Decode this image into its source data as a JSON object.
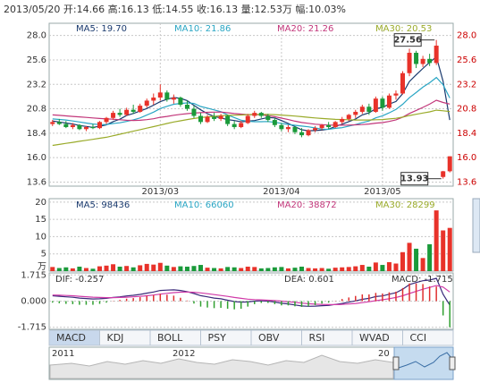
{
  "header": "2013/05/20 开:14.66 高:16.13 低:14.55 收:16.13 量:12.53万 幅:10.03%",
  "chart_data": [
    {
      "type": "candlestick",
      "categories": [
        null,
        null,
        null,
        null,
        null,
        null,
        null,
        null,
        null,
        null,
        null,
        null,
        null,
        null,
        null,
        null,
        "2013/03",
        null,
        null,
        null,
        null,
        null,
        null,
        null,
        null,
        null,
        null,
        null,
        null,
        null,
        null,
        null,
        null,
        null,
        "2013/04",
        null,
        null,
        null,
        null,
        null,
        null,
        null,
        null,
        null,
        null,
        null,
        null,
        null,
        null,
        "2013/05",
        null,
        null,
        null,
        null,
        null,
        null,
        null,
        null,
        null,
        null
      ],
      "open": [
        19.3,
        19.5,
        19.3,
        19.0,
        19.2,
        18.8,
        19.0,
        18.9,
        19.5,
        19.9,
        20.4,
        20.2,
        20.7,
        20.5,
        21.1,
        21.6,
        21.9,
        22.4,
        21.7,
        21.9,
        21.2,
        20.8,
        20.1,
        19.5,
        20.0,
        19.8,
        20.1,
        19.3,
        19.0,
        19.4,
        20.1,
        20.4,
        20.1,
        19.7,
        19.2,
        18.8,
        19.0,
        18.5,
        18.2,
        18.7,
        18.9,
        19.2,
        19.0,
        19.5,
        19.8,
        20.2,
        20.5,
        21.0,
        20.5,
        21.8,
        20.9,
        22.1,
        22.3,
        24.3,
        26.3,
        25.2,
        25.7,
        25.3,
        14.1,
        14.66
      ],
      "high": [
        19.7,
        19.8,
        19.6,
        19.4,
        19.3,
        19.1,
        19.3,
        19.6,
        20.0,
        20.6,
        20.8,
        20.9,
        21.2,
        21.3,
        21.8,
        22.3,
        23.2,
        22.6,
        22.2,
        22.0,
        21.6,
        21.1,
        20.4,
        20.2,
        20.4,
        20.3,
        20.2,
        19.6,
        19.6,
        20.3,
        20.6,
        20.5,
        20.3,
        19.9,
        19.4,
        19.2,
        19.1,
        18.9,
        18.8,
        19.1,
        19.3,
        19.5,
        19.6,
        20.0,
        20.3,
        20.7,
        21.2,
        21.3,
        22.0,
        22.0,
        22.3,
        22.6,
        24.5,
        26.7,
        26.5,
        26.0,
        26.2,
        27.56,
        14.7,
        16.13
      ],
      "low": [
        19.1,
        19.2,
        18.9,
        18.8,
        18.7,
        18.6,
        18.8,
        18.8,
        19.3,
        19.7,
        20.0,
        20.1,
        20.3,
        20.4,
        20.9,
        21.2,
        21.6,
        21.5,
        21.3,
        21.0,
        20.6,
        19.9,
        19.3,
        19.4,
        19.6,
        19.6,
        19.1,
        18.8,
        18.9,
        19.3,
        19.9,
        19.9,
        19.5,
        19.0,
        18.6,
        18.5,
        18.3,
        18.0,
        18.1,
        18.5,
        18.7,
        18.8,
        18.9,
        19.3,
        19.6,
        19.9,
        20.3,
        20.2,
        20.4,
        20.6,
        20.8,
        21.7,
        22.2,
        24.0,
        24.8,
        24.9,
        25.0,
        25.1,
        13.93,
        14.55
      ],
      "close": [
        19.5,
        19.3,
        19.0,
        19.2,
        18.8,
        19.0,
        18.9,
        19.5,
        19.9,
        20.4,
        20.2,
        20.7,
        20.5,
        21.1,
        21.6,
        21.9,
        22.4,
        21.7,
        21.9,
        21.2,
        20.8,
        20.1,
        19.5,
        20.0,
        19.8,
        20.1,
        19.3,
        19.0,
        19.4,
        20.1,
        20.4,
        20.1,
        19.7,
        19.2,
        18.8,
        19.0,
        18.5,
        18.2,
        18.7,
        18.9,
        19.2,
        19.0,
        19.5,
        19.8,
        20.2,
        20.5,
        21.0,
        20.5,
        21.8,
        20.9,
        22.1,
        22.3,
        24.3,
        26.3,
        25.2,
        25.7,
        25.3,
        27.0,
        14.66,
        16.13
      ],
      "up_color": "#e8322a",
      "down_color": "#1a9a3a",
      "right_axis_color": "#cc0000",
      "series": [
        {
          "name": "MA5: 19.70",
          "color": "#1a3a6e",
          "values": [
            19.6,
            19.5,
            19.4,
            19.3,
            19.16,
            19.06,
            18.98,
            19.08,
            19.22,
            19.54,
            19.78,
            20.14,
            20.34,
            20.58,
            20.82,
            21.16,
            21.5,
            21.74,
            21.9,
            21.82,
            21.6,
            21.14,
            20.7,
            20.32,
            20.04,
            19.9,
            19.74,
            19.64,
            19.52,
            19.58,
            19.64,
            19.8,
            19.94,
            19.9,
            19.64,
            19.36,
            19.04,
            18.74,
            18.64,
            18.66,
            18.7,
            18.8,
            19.06,
            19.28,
            19.54,
            19.8,
            20.2,
            20.4,
            20.8,
            20.94,
            21.26,
            21.52,
            22.28,
            23.48,
            24.14,
            24.76,
            25.36,
            25.9,
            23.5,
            19.7
          ]
        },
        {
          "name": "MA10: 21.86",
          "color": "#2aa6c4",
          "values": [
            19.8,
            19.75,
            19.7,
            19.6,
            19.5,
            19.4,
            19.3,
            19.25,
            19.25,
            19.35,
            19.42,
            19.56,
            19.71,
            19.9,
            20.18,
            20.47,
            20.82,
            21.04,
            21.24,
            21.32,
            21.38,
            21.32,
            21.02,
            20.87,
            20.69,
            20.51,
            20.2,
            19.93,
            19.68,
            19.57,
            19.53,
            19.53,
            19.55,
            19.47,
            19.37,
            19.26,
            19.18,
            19.1,
            19.03,
            18.91,
            18.79,
            18.78,
            18.88,
            18.94,
            19.1,
            19.25,
            19.43,
            19.6,
            19.91,
            20.11,
            20.4,
            20.73,
            21.24,
            21.89,
            22.4,
            22.92,
            23.35,
            23.87,
            23.16,
            21.86
          ]
        },
        {
          "name": "MA20: 21.26",
          "color": "#c2367a",
          "values": [
            20.2,
            20.15,
            20.1,
            20.05,
            20.0,
            19.95,
            19.9,
            19.85,
            19.8,
            19.78,
            19.72,
            19.67,
            19.65,
            19.67,
            19.73,
            19.82,
            19.96,
            20.05,
            20.16,
            20.25,
            20.32,
            20.38,
            20.42,
            20.45,
            20.47,
            20.48,
            20.41,
            20.33,
            20.28,
            20.22,
            20.23,
            20.2,
            20.12,
            20.02,
            19.88,
            19.74,
            19.58,
            19.45,
            19.37,
            19.28,
            19.24,
            19.2,
            19.2,
            19.19,
            19.2,
            19.22,
            19.25,
            19.3,
            19.39,
            19.44,
            19.56,
            19.71,
            19.98,
            20.34,
            20.64,
            20.94,
            21.25,
            21.64,
            21.42,
            21.26
          ]
        },
        {
          "name": "MA30: 20.53",
          "color": "#9aab2a",
          "values": [
            17.2,
            17.3,
            17.4,
            17.5,
            17.6,
            17.7,
            17.8,
            17.9,
            18.0,
            18.15,
            18.3,
            18.45,
            18.6,
            18.75,
            18.9,
            19.05,
            19.2,
            19.35,
            19.5,
            19.62,
            19.74,
            19.85,
            19.93,
            20.0,
            20.06,
            20.12,
            20.15,
            20.17,
            20.19,
            20.22,
            20.24,
            20.25,
            20.24,
            20.22,
            20.18,
            20.14,
            20.08,
            20.02,
            19.96,
            19.9,
            19.85,
            19.8,
            19.76,
            19.74,
            19.72,
            19.7,
            19.7,
            19.7,
            19.72,
            19.74,
            19.8,
            19.86,
            19.98,
            20.14,
            20.26,
            20.38,
            20.5,
            20.66,
            20.6,
            20.53
          ]
        }
      ],
      "ylim": [
        13.2,
        29.2
      ],
      "yticks": [
        {
          "value": 28,
          "label": "28.0"
        },
        25.6,
        23.2,
        20.8,
        18.4,
        {
          "value": 16,
          "label": "16.0"
        },
        13.6
      ],
      "grid": true
    },
    {
      "type": "volume",
      "y_unit": "万",
      "values": [
        1.2,
        0.9,
        1.1,
        0.8,
        1.3,
        0.9,
        0.7,
        1.4,
        1.6,
        2.0,
        1.3,
        1.5,
        1.1,
        1.7,
        2.1,
        1.9,
        2.4,
        1.6,
        1.2,
        1.4,
        1.3,
        1.5,
        1.8,
        1.0,
        0.9,
        0.8,
        1.2,
        1.1,
        0.9,
        1.3,
        1.2,
        0.8,
        0.9,
        1.1,
        1.2,
        0.8,
        1.0,
        1.3,
        0.9,
        0.8,
        0.9,
        0.7,
        1.0,
        1.1,
        1.2,
        1.4,
        1.8,
        1.3,
        2.5,
        1.8,
        2.6,
        2.2,
        5.5,
        8.2,
        6.5,
        3.8,
        7.8,
        17.6,
        11.8,
        12.53
      ],
      "legend": [
        {
          "name": "MA5: 98436",
          "color": "#1a3a6e"
        },
        {
          "name": "MA10: 66060",
          "color": "#2aa6c4"
        },
        {
          "name": "MA20: 38872",
          "color": "#c2367a"
        },
        {
          "name": "MA30: 28299",
          "color": "#9aab2a"
        }
      ],
      "ylim": [
        0,
        21
      ],
      "yticks": [
        5,
        10,
        15,
        20
      ],
      "grid": true
    },
    {
      "type": "macd",
      "series": [
        {
          "name": "DIF: -0.257",
          "color": "#3a2a7a",
          "values": [
            0.35,
            0.32,
            0.28,
            0.25,
            0.2,
            0.17,
            0.14,
            0.15,
            0.18,
            0.24,
            0.28,
            0.34,
            0.38,
            0.44,
            0.52,
            0.6,
            0.7,
            0.72,
            0.74,
            0.7,
            0.62,
            0.5,
            0.36,
            0.28,
            0.2,
            0.15,
            0.06,
            -0.03,
            -0.07,
            -0.05,
            0.0,
            0.02,
            0.0,
            -0.06,
            -0.14,
            -0.18,
            -0.25,
            -0.32,
            -0.34,
            -0.33,
            -0.3,
            -0.28,
            -0.22,
            -0.15,
            -0.07,
            0.02,
            0.12,
            0.18,
            0.3,
            0.34,
            0.45,
            0.55,
            0.78,
            1.08,
            1.22,
            1.34,
            1.38,
            1.5,
            0.45,
            -0.257
          ]
        },
        {
          "name": "DEA: 0.601",
          "color": "#d03aa8",
          "values": [
            0.4,
            0.39,
            0.37,
            0.35,
            0.32,
            0.29,
            0.26,
            0.24,
            0.23,
            0.23,
            0.24,
            0.26,
            0.28,
            0.31,
            0.35,
            0.4,
            0.46,
            0.51,
            0.56,
            0.59,
            0.6,
            0.58,
            0.54,
            0.49,
            0.43,
            0.37,
            0.31,
            0.24,
            0.18,
            0.13,
            0.1,
            0.08,
            0.06,
            0.04,
            0.0,
            -0.04,
            -0.08,
            -0.13,
            -0.17,
            -0.2,
            -0.22,
            -0.23,
            -0.23,
            -0.22,
            -0.19,
            -0.15,
            -0.1,
            -0.04,
            0.03,
            0.09,
            0.16,
            0.24,
            0.35,
            0.5,
            0.64,
            0.78,
            0.9,
            1.02,
            0.92,
            0.601
          ]
        },
        {
          "name": "MACD: -1.715",
          "type": "bar",
          "color": "#e03030",
          "negative_color": "#30a030",
          "values": [
            -0.1,
            -0.14,
            -0.18,
            -0.2,
            -0.24,
            -0.24,
            -0.24,
            -0.18,
            -0.1,
            0.02,
            0.08,
            0.16,
            0.2,
            0.26,
            0.34,
            0.4,
            0.48,
            0.42,
            0.36,
            0.22,
            0.04,
            -0.16,
            -0.36,
            -0.42,
            -0.46,
            -0.44,
            -0.5,
            -0.54,
            -0.5,
            -0.36,
            -0.2,
            -0.12,
            -0.12,
            -0.2,
            -0.28,
            -0.28,
            -0.34,
            -0.38,
            -0.34,
            -0.26,
            -0.16,
            -0.1,
            0.02,
            0.14,
            0.24,
            0.34,
            0.44,
            0.44,
            0.54,
            0.5,
            0.58,
            0.62,
            0.86,
            1.16,
            1.16,
            1.12,
            0.96,
            0.96,
            -0.94,
            -1.715
          ]
        }
      ],
      "ylim": [
        -1.85,
        1.85
      ],
      "yticks": [
        1.715,
        {
          "value": 0,
          "label": "0.000"
        },
        -1.715
      ],
      "grid": true
    }
  ],
  "tabs": [
    "MACD",
    "KDJ",
    "BOLL",
    "PSY",
    "OBV",
    "RSI",
    "WVAD",
    "CCI"
  ],
  "navigator": {
    "labels": [
      "2011",
      "2012",
      "20"
    ]
  }
}
